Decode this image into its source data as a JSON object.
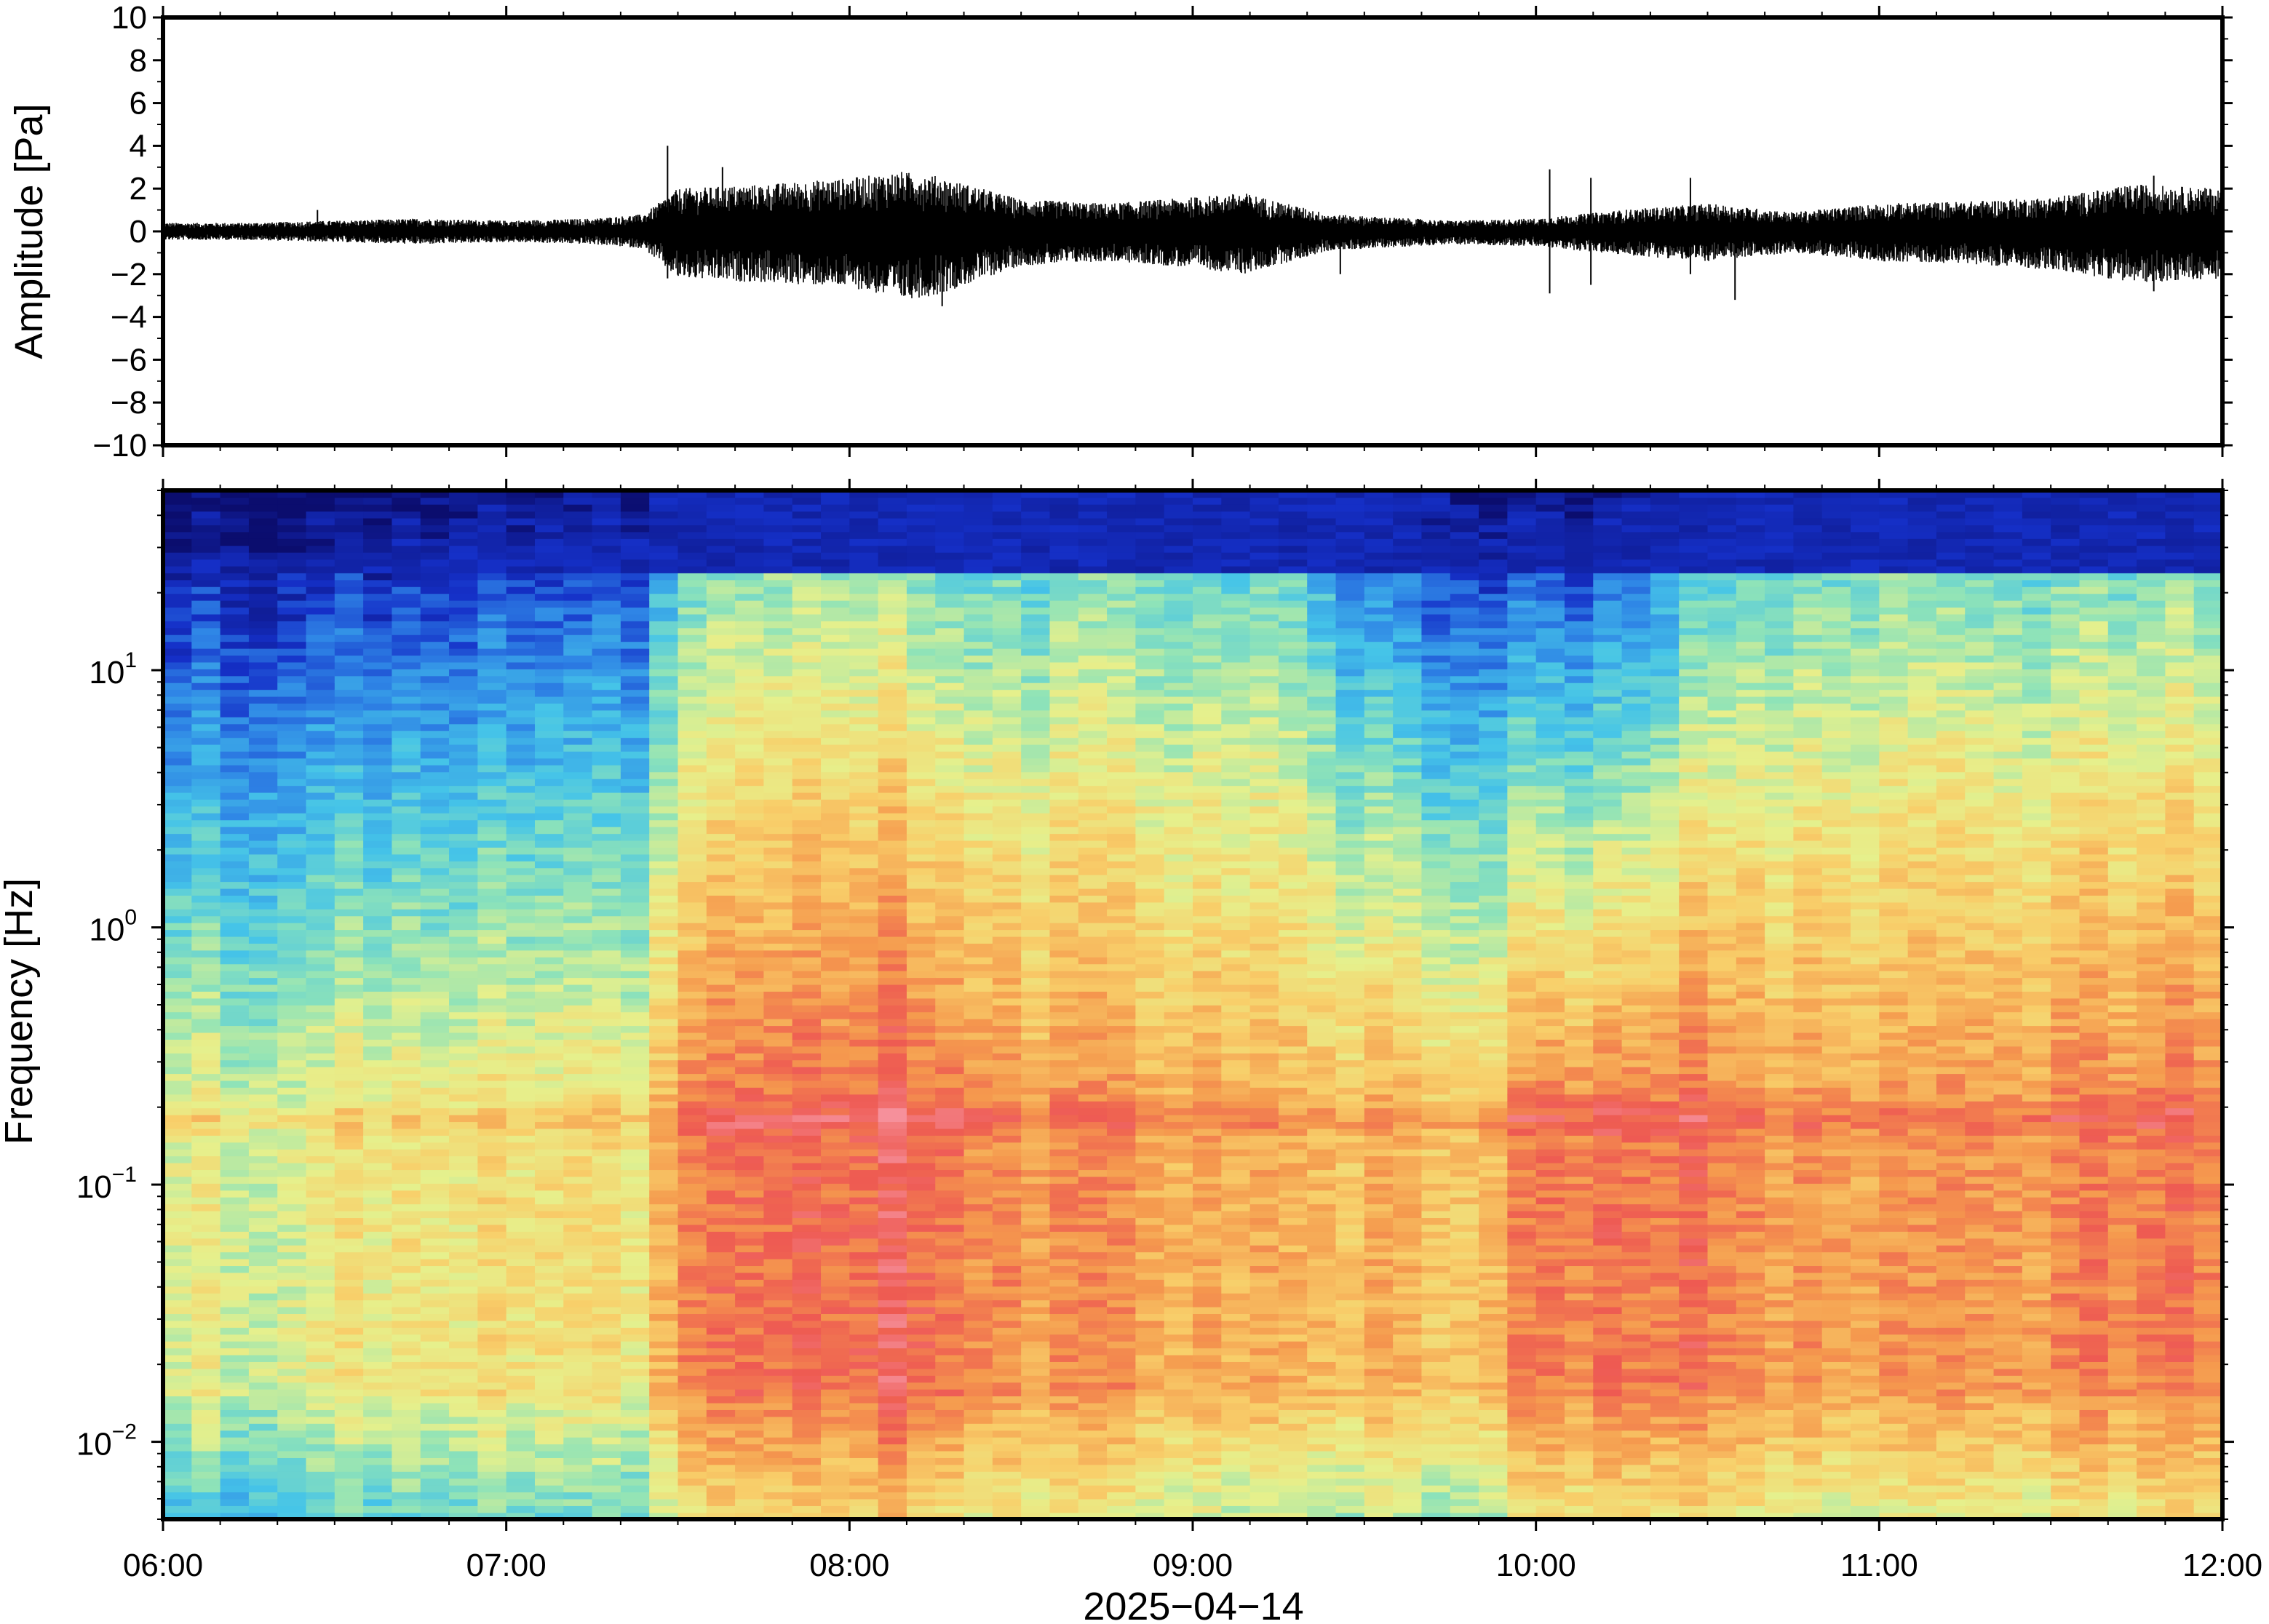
{
  "chart_data": [
    {
      "type": "line",
      "name": "waveform",
      "ylabel": "Amplitude [Pa]",
      "ylim": [
        -10,
        10
      ],
      "yticks": [
        {
          "value": 10,
          "label": "10"
        },
        {
          "value": 8,
          "label": "8"
        },
        {
          "value": 6,
          "label": "6"
        },
        {
          "value": 4,
          "label": "4"
        },
        {
          "value": 2,
          "label": "2"
        },
        {
          "value": 0,
          "label": "0"
        },
        {
          "value": -2,
          "label": "−2"
        },
        {
          "value": -4,
          "label": "−4"
        },
        {
          "value": -6,
          "label": "−6"
        },
        {
          "value": -8,
          "label": "−8"
        },
        {
          "value": -10,
          "label": "−10"
        }
      ],
      "grid": false,
      "color": "#000000",
      "envelope": {
        "x_hours": [
          6.0,
          6.25,
          6.5,
          6.75,
          7.0,
          7.25,
          7.4,
          7.5,
          7.75,
          8.0,
          8.15,
          8.25,
          8.5,
          8.75,
          9.0,
          9.15,
          9.4,
          9.75,
          10.0,
          10.25,
          10.5,
          10.75,
          11.0,
          11.25,
          11.5,
          11.75,
          12.0
        ],
        "max_pa": [
          0.4,
          0.4,
          0.5,
          0.6,
          0.5,
          0.6,
          0.8,
          2.0,
          2.2,
          2.5,
          2.8,
          2.6,
          1.5,
          1.3,
          1.6,
          1.8,
          0.8,
          0.5,
          0.6,
          1.0,
          1.3,
          0.9,
          1.3,
          1.4,
          1.6,
          2.2,
          2.0
        ],
        "min_pa": [
          -0.4,
          -0.4,
          -0.5,
          -0.6,
          -0.5,
          -0.6,
          -0.8,
          -2.2,
          -2.4,
          -2.6,
          -3.2,
          -3.0,
          -1.6,
          -1.4,
          -1.7,
          -2.0,
          -0.9,
          -0.6,
          -0.7,
          -1.1,
          -1.4,
          -1.0,
          -1.4,
          -1.5,
          -1.8,
          -2.4,
          -2.2
        ]
      },
      "spikes": [
        {
          "x": 6.45,
          "y": 1.0
        },
        {
          "x": 7.47,
          "y": 4.0
        },
        {
          "x": 7.47,
          "y": -2.2
        },
        {
          "x": 7.63,
          "y": 3.0
        },
        {
          "x": 8.27,
          "y": -3.5
        },
        {
          "x": 9.43,
          "y": -2.0
        },
        {
          "x": 10.04,
          "y": 2.9
        },
        {
          "x": 10.04,
          "y": -2.9
        },
        {
          "x": 10.16,
          "y": 2.5
        },
        {
          "x": 10.16,
          "y": -2.5
        },
        {
          "x": 10.45,
          "y": 2.5
        },
        {
          "x": 10.45,
          "y": -2.0
        },
        {
          "x": 10.58,
          "y": -3.2
        },
        {
          "x": 11.8,
          "y": 2.6
        },
        {
          "x": 11.8,
          "y": -2.8
        }
      ]
    },
    {
      "type": "heatmap",
      "name": "spectrogram",
      "ylabel": "Frequency [Hz]",
      "yscale": "log",
      "ylim_hz": [
        0.005,
        50
      ],
      "yticks": [
        {
          "value": 10,
          "base": "10",
          "exp": "1"
        },
        {
          "value": 1,
          "base": "10",
          "exp": "0"
        },
        {
          "value": 0.1,
          "base": "10",
          "exp": "−1"
        },
        {
          "value": 0.01,
          "base": "10",
          "exp": "−2"
        }
      ],
      "colormap": "rainbow (navy = low power, pink = high power)",
      "colormap_stops": [
        "#0b0d6e",
        "#1530c8",
        "#2f86e6",
        "#45c4e8",
        "#8fe3b8",
        "#e6f08c",
        "#f8cf6a",
        "#f59a4e",
        "#ee5a52",
        "#f6909b"
      ],
      "grid": false,
      "time_profile": {
        "x_hours": [
          6.0,
          6.3,
          6.6,
          7.0,
          7.4,
          7.5,
          7.75,
          8.0,
          8.15,
          8.3,
          8.6,
          9.0,
          9.3,
          9.5,
          9.8,
          10.0,
          10.2,
          10.4,
          10.55,
          10.9,
          11.3,
          11.6,
          11.9,
          12.0
        ],
        "low_freq_power": [
          0.56,
          0.55,
          0.6,
          0.62,
          0.62,
          0.8,
          0.82,
          0.86,
          0.9,
          0.85,
          0.78,
          0.76,
          0.72,
          0.7,
          0.72,
          0.8,
          0.86,
          0.85,
          0.8,
          0.74,
          0.76,
          0.8,
          0.82,
          0.8
        ],
        "high_freq_power": [
          0.1,
          0.12,
          0.12,
          0.16,
          0.18,
          0.42,
          0.46,
          0.5,
          0.5,
          0.46,
          0.44,
          0.46,
          0.42,
          0.22,
          0.18,
          0.14,
          0.18,
          0.3,
          0.4,
          0.44,
          0.44,
          0.45,
          0.46,
          0.44
        ]
      }
    }
  ],
  "x_axis": {
    "range_hours": [
      6,
      12
    ],
    "ticks": [
      {
        "value": 6,
        "label": "06:00"
      },
      {
        "value": 7,
        "label": "07:00"
      },
      {
        "value": 8,
        "label": "08:00"
      },
      {
        "value": 9,
        "label": "09:00"
      },
      {
        "value": 10,
        "label": "10:00"
      },
      {
        "value": 11,
        "label": "11:00"
      },
      {
        "value": 12,
        "label": "12:00"
      }
    ],
    "date_label": "2025−04−14"
  }
}
